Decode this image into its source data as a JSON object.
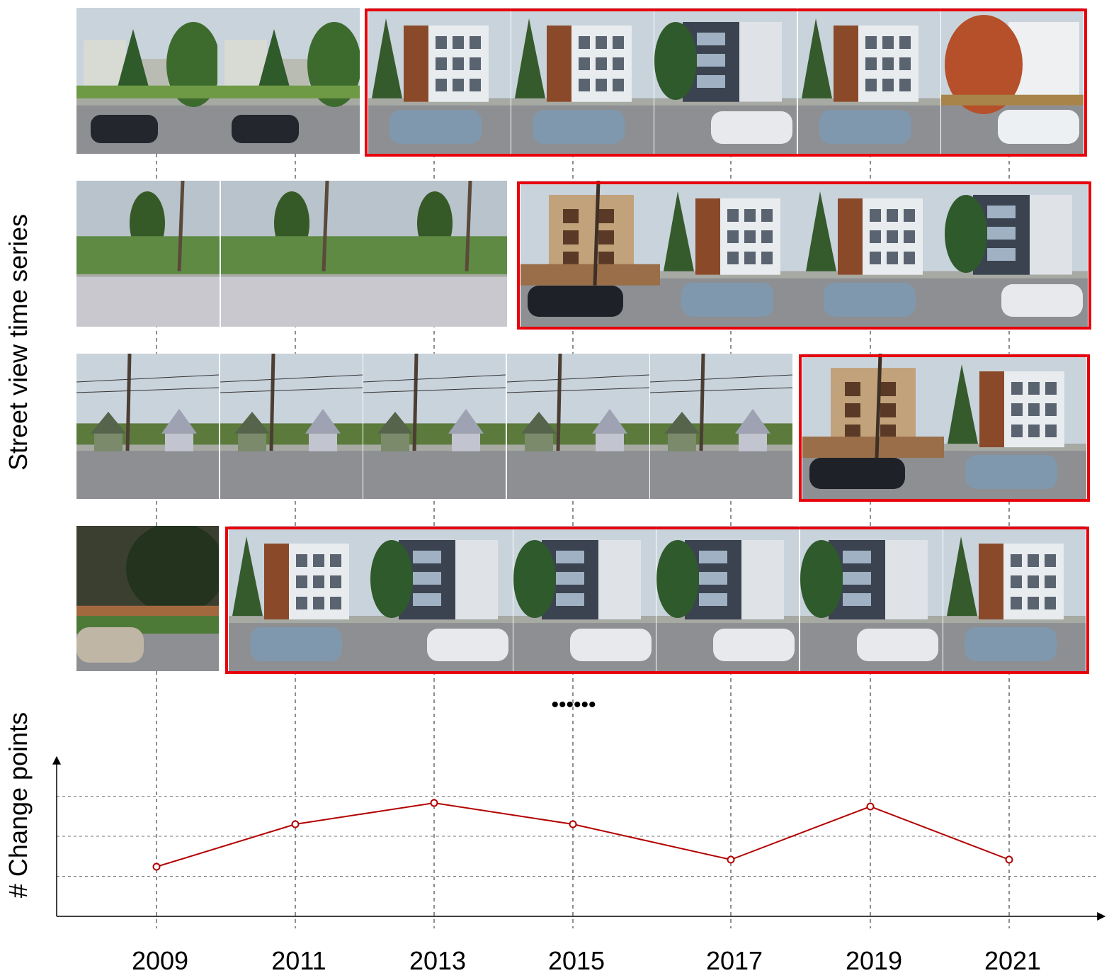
{
  "ylabel_top": "Street view time series",
  "ylabel_bottom": "# Change points",
  "ellipsis": "••••••",
  "highlight_color": "#e8000b",
  "line_color": "#b30000",
  "years": [
    "2009",
    "2011",
    "2013",
    "2015",
    "2017",
    "2019",
    "2021"
  ],
  "rows": [
    {
      "image_count": 7,
      "change_from_image": 2,
      "images": [
        {
          "tone": "sky-trees-car"
        },
        {
          "tone": "sky-trees-car"
        },
        {
          "tone": "modern-townhouse"
        },
        {
          "tone": "modern-townhouse"
        },
        {
          "tone": "dark-townhouse"
        },
        {
          "tone": "modern-townhouse"
        },
        {
          "tone": "autumn-tree"
        }
      ]
    },
    {
      "image_count": 7,
      "change_from_image": 3,
      "images": [
        {
          "tone": "overgrown-lot"
        },
        {
          "tone": "overgrown-lot"
        },
        {
          "tone": "overgrown-lot"
        },
        {
          "tone": "construction"
        },
        {
          "tone": "modern-townhouse"
        },
        {
          "tone": "modern-townhouse"
        },
        {
          "tone": "dark-townhouse"
        }
      ]
    },
    {
      "image_count": 7,
      "change_from_image": 5,
      "images": [
        {
          "tone": "old-houses"
        },
        {
          "tone": "old-houses"
        },
        {
          "tone": "old-houses"
        },
        {
          "tone": "old-houses"
        },
        {
          "tone": "old-houses"
        },
        {
          "tone": "construction"
        },
        {
          "tone": "modern-townhouse"
        }
      ]
    },
    {
      "image_count": 7,
      "change_from_image": 1,
      "images": [
        {
          "tone": "dark-trees"
        },
        {
          "tone": "modern-townhouse"
        },
        {
          "tone": "dark-townhouse"
        },
        {
          "tone": "dark-townhouse"
        },
        {
          "tone": "dark-townhouse"
        },
        {
          "tone": "dark-townhouse"
        },
        {
          "tone": "modern-townhouse"
        }
      ]
    }
  ],
  "chart_data": {
    "type": "line",
    "x": [
      "2009",
      "2011",
      "2013",
      "2015",
      "2017",
      "2019",
      "2021"
    ],
    "series": [
      {
        "values": [
          1.4,
          2.6,
          3.2,
          2.6,
          1.6,
          3.1,
          1.6
        ]
      }
    ],
    "ylim": [
      0,
      4.5
    ],
    "grid": "horizontal dashed",
    "xlabel": "",
    "ylabel": "# Change points"
  }
}
